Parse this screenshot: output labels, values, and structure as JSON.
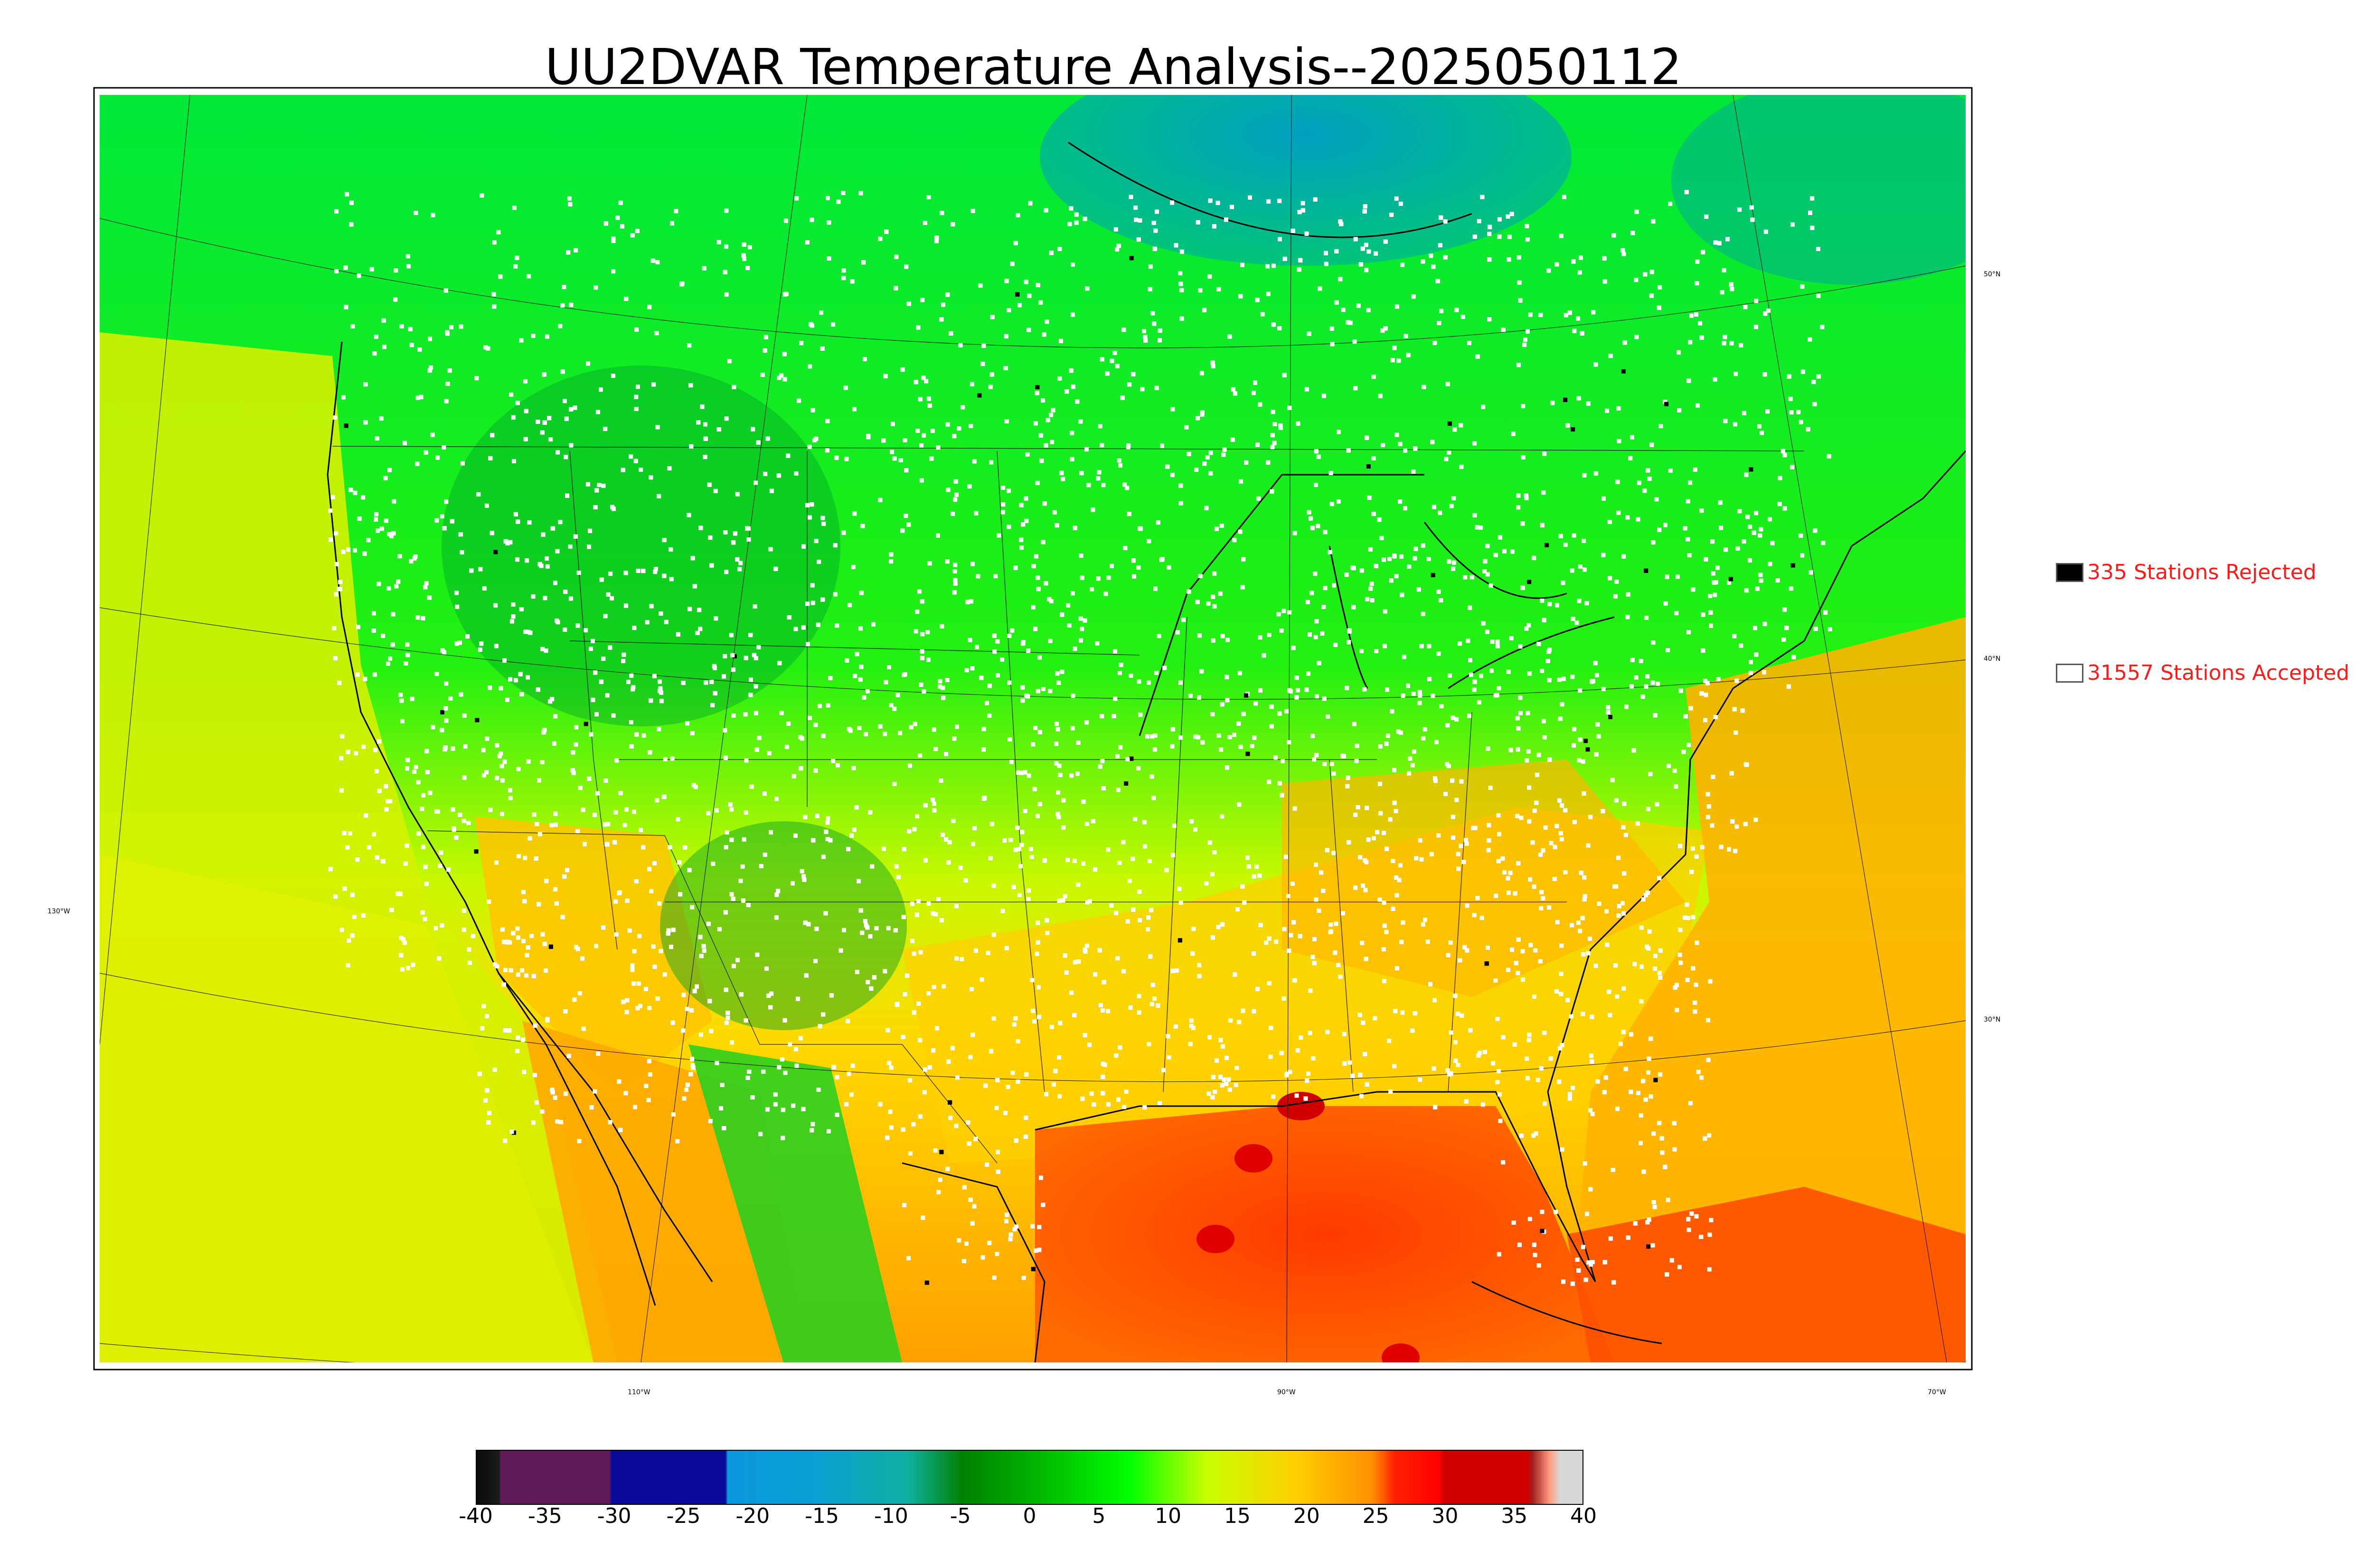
{
  "title": "UU2DVAR Temperature Analysis--2025050112",
  "legend": {
    "rejected": {
      "label": "335 Stations Rejected",
      "swatch_color": "#000000"
    },
    "accepted": {
      "label": "31557 Stations Accepted",
      "swatch_color": "#ffffff"
    }
  },
  "graticule": {
    "lat_labels": [
      "50°N",
      "40°N",
      "30°N"
    ],
    "lon_labels_bottom": [
      "110°W",
      "90°W",
      "70°W"
    ],
    "lon_label_left": "130°W"
  },
  "colorbar": {
    "min": -40,
    "max": 40,
    "tick_labels": [
      "-40",
      "-35",
      "-30",
      "-25",
      "-20",
      "-15",
      "-10",
      "-5",
      "0",
      "5",
      "10",
      "15",
      "20",
      "25",
      "30",
      "35",
      "40"
    ],
    "colors": [
      "#0a0a0a",
      "#5e1a5a",
      "#0a0a9a",
      "#0aa0e0",
      "#00b0b0",
      "#008000",
      "#00ff00",
      "#c8ff00",
      "#ffd000",
      "#ff9000",
      "#ff1000",
      "#d00000",
      "#a00000",
      "#ff9a80",
      "#d8d8d8"
    ]
  },
  "colors": {
    "ocean_north": "#00d040",
    "hudson": "#00a0c8",
    "land_west": "#00c030",
    "land_south": "#ffe000",
    "gulf": "#ff5a00",
    "atlantic": "#ffb000",
    "pacific": "#d8f000"
  }
}
